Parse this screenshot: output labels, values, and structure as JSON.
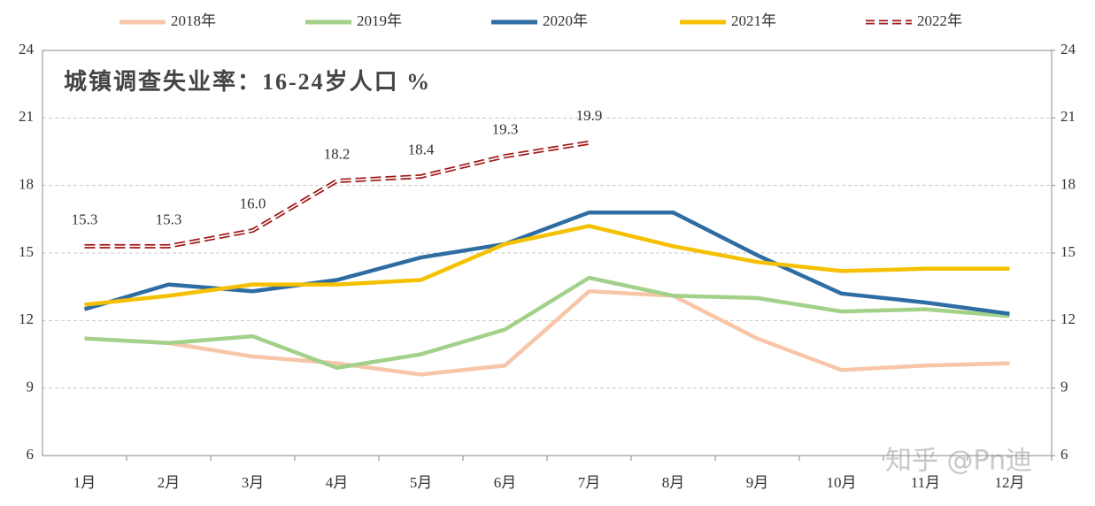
{
  "chart_data": {
    "type": "line",
    "title": "城镇调查失业率：16-24岁人口 %",
    "watermark": "知乎 @Pn迪",
    "categories": [
      "1月",
      "2月",
      "3月",
      "4月",
      "5月",
      "6月",
      "7月",
      "8月",
      "9月",
      "10月",
      "11月",
      "12月"
    ],
    "ylim": [
      6,
      24
    ],
    "yticks": [
      6,
      9,
      12,
      15,
      18,
      21,
      24
    ],
    "y2lim": [
      6,
      24
    ],
    "y2ticks": [
      6,
      9,
      12,
      15,
      18,
      21,
      24
    ],
    "grid": true,
    "series": [
      {
        "name": "2018年",
        "color": "#f7c6a8",
        "values": [
          11.2,
          11.0,
          10.4,
          10.1,
          9.6,
          10.0,
          13.3,
          13.1,
          11.2,
          9.8,
          10.0,
          10.1
        ]
      },
      {
        "name": "2019年",
        "color": "#a3d18a",
        "values": [
          11.2,
          11.0,
          11.3,
          9.9,
          10.5,
          11.6,
          13.9,
          13.1,
          13.0,
          12.4,
          12.5,
          12.2
        ]
      },
      {
        "name": "2020年",
        "color": "#2e6da4",
        "values": [
          12.5,
          13.6,
          13.3,
          13.8,
          14.8,
          15.4,
          16.8,
          16.8,
          14.9,
          13.2,
          12.8,
          12.3
        ]
      },
      {
        "name": "2021年",
        "color": "#f5c000",
        "values": [
          12.7,
          13.1,
          13.6,
          13.6,
          13.8,
          15.4,
          16.2,
          15.3,
          14.6,
          14.2,
          14.3,
          14.3
        ]
      },
      {
        "name": "2022年",
        "color": "#a01818",
        "dashed": true,
        "values": [
          15.3,
          15.3,
          16.0,
          18.2,
          18.4,
          19.3,
          19.9,
          null,
          null,
          null,
          null,
          null
        ],
        "value_labels": [
          "15.3",
          "15.3",
          "16.0",
          "18.2",
          "18.4",
          "19.3",
          "19.9",
          null,
          null,
          null,
          null,
          null
        ]
      }
    ]
  }
}
